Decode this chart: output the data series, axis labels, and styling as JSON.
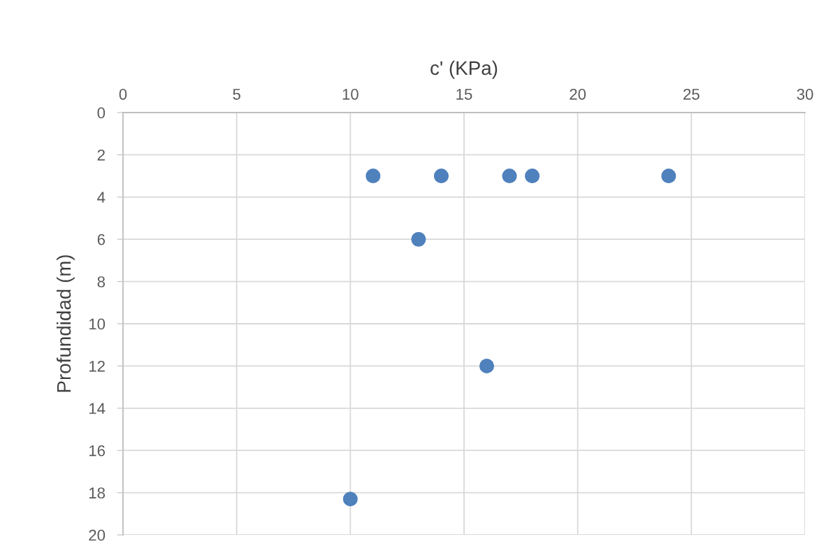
{
  "chart_data": {
    "type": "scatter",
    "xlabel": "c' (KPa)",
    "ylabel": "Profundidad (m)",
    "x": [
      11,
      14,
      17,
      18,
      24,
      13,
      16,
      10
    ],
    "series": [
      {
        "color": "#4f81bd",
        "values": [
          3,
          3,
          3,
          3,
          3,
          6,
          12,
          18.3
        ]
      }
    ],
    "xlim": [
      0,
      30
    ],
    "xticks": [
      0,
      5,
      10,
      15,
      20,
      25,
      30
    ],
    "ylim": [
      20,
      0
    ],
    "yticks": [
      0,
      2,
      4,
      6,
      8,
      10,
      12,
      14,
      16,
      18,
      20
    ],
    "grid": true,
    "marker": "circle"
  }
}
